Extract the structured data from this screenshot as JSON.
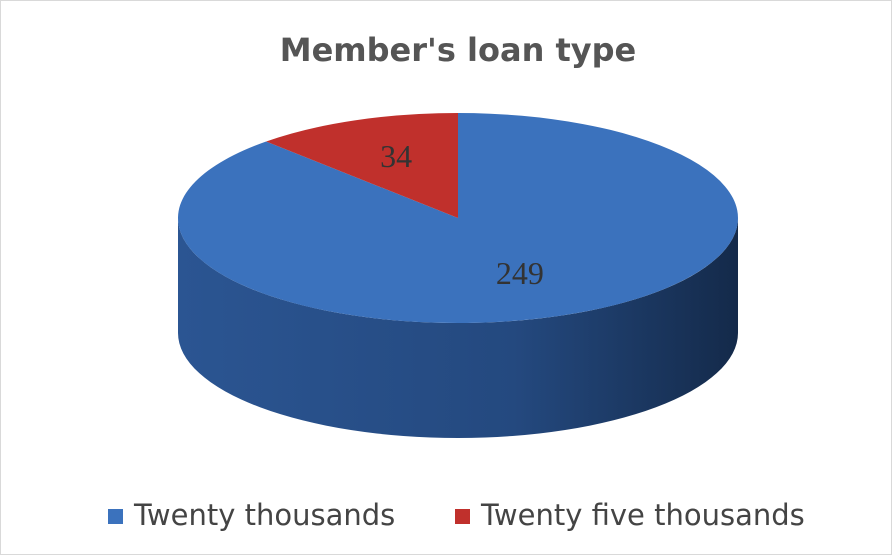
{
  "chart_data": {
    "type": "pie",
    "title": "Member's loan type",
    "categories": [
      "Twenty thousands",
      "Twenty five thousands"
    ],
    "values": [
      249,
      34
    ],
    "colors": [
      "#3b72bd",
      "#c0302c"
    ],
    "legend": "bottom"
  }
}
